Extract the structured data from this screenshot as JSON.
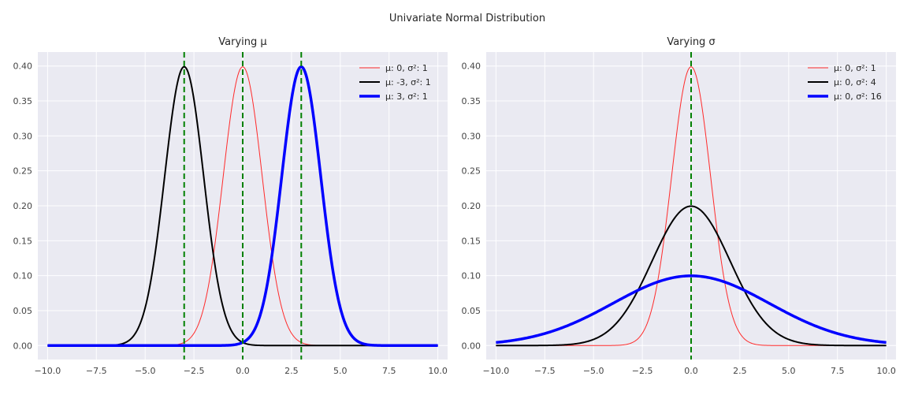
{
  "figure": {
    "suptitle": "Univariate Normal Distribution"
  },
  "chart_data": [
    {
      "type": "line",
      "title": "Varying μ",
      "xlabel": "",
      "ylabel": "",
      "xlim": [
        -10.5,
        10.5
      ],
      "ylim": [
        -0.02,
        0.42
      ],
      "xticks": [
        -10.0,
        -7.5,
        -5.0,
        -2.5,
        0.0,
        2.5,
        5.0,
        7.5,
        10.0
      ],
      "xtick_labels": [
        "−10.0",
        "−7.5",
        "−5.0",
        "−2.5",
        "0.0",
        "2.5",
        "5.0",
        "7.5",
        "10.0"
      ],
      "yticks": [
        0.0,
        0.05,
        0.1,
        0.15,
        0.2,
        0.25,
        0.3,
        0.35,
        0.4
      ],
      "ytick_labels": [
        "0.00",
        "0.05",
        "0.10",
        "0.15",
        "0.20",
        "0.25",
        "0.30",
        "0.35",
        "0.40"
      ],
      "grid": true,
      "legend_position": "top-right",
      "x_range": [
        -10,
        10
      ],
      "series": [
        {
          "name": "μ: 0, σ²: 1",
          "mu": 0,
          "variance": 1,
          "color": "#ff2a2a",
          "width": 1
        },
        {
          "name": "μ: -3, σ²: 1",
          "mu": -3,
          "variance": 1,
          "color": "#000000",
          "width": 2
        },
        {
          "name": "μ: 3, σ²: 1",
          "mu": 3,
          "variance": 1,
          "color": "#0000ff",
          "width": 3.5
        }
      ],
      "vlines": [
        -3,
        0,
        3
      ],
      "vline_color": "#008000"
    },
    {
      "type": "line",
      "title": "Varying σ",
      "xlabel": "",
      "ylabel": "",
      "xlim": [
        -10.5,
        10.5
      ],
      "ylim": [
        -0.02,
        0.42
      ],
      "xticks": [
        -10.0,
        -7.5,
        -5.0,
        -2.5,
        0.0,
        2.5,
        5.0,
        7.5,
        10.0
      ],
      "xtick_labels": [
        "−10.0",
        "−7.5",
        "−5.0",
        "−2.5",
        "0.0",
        "2.5",
        "5.0",
        "7.5",
        "10.0"
      ],
      "yticks": [
        0.0,
        0.05,
        0.1,
        0.15,
        0.2,
        0.25,
        0.3,
        0.35,
        0.4
      ],
      "ytick_labels": [
        "0.00",
        "0.05",
        "0.10",
        "0.15",
        "0.20",
        "0.25",
        "0.30",
        "0.35",
        "0.40"
      ],
      "grid": true,
      "legend_position": "top-right",
      "x_range": [
        -10,
        10
      ],
      "series": [
        {
          "name": "μ: 0, σ²: 1",
          "mu": 0,
          "variance": 1,
          "color": "#ff2a2a",
          "width": 1
        },
        {
          "name": "μ: 0, σ²: 4",
          "mu": 0,
          "variance": 4,
          "color": "#000000",
          "width": 2
        },
        {
          "name": "μ: 0, σ²: 16",
          "mu": 0,
          "variance": 16,
          "color": "#0000ff",
          "width": 3.5
        }
      ],
      "vlines": [
        0
      ],
      "vline_color": "#008000"
    }
  ]
}
